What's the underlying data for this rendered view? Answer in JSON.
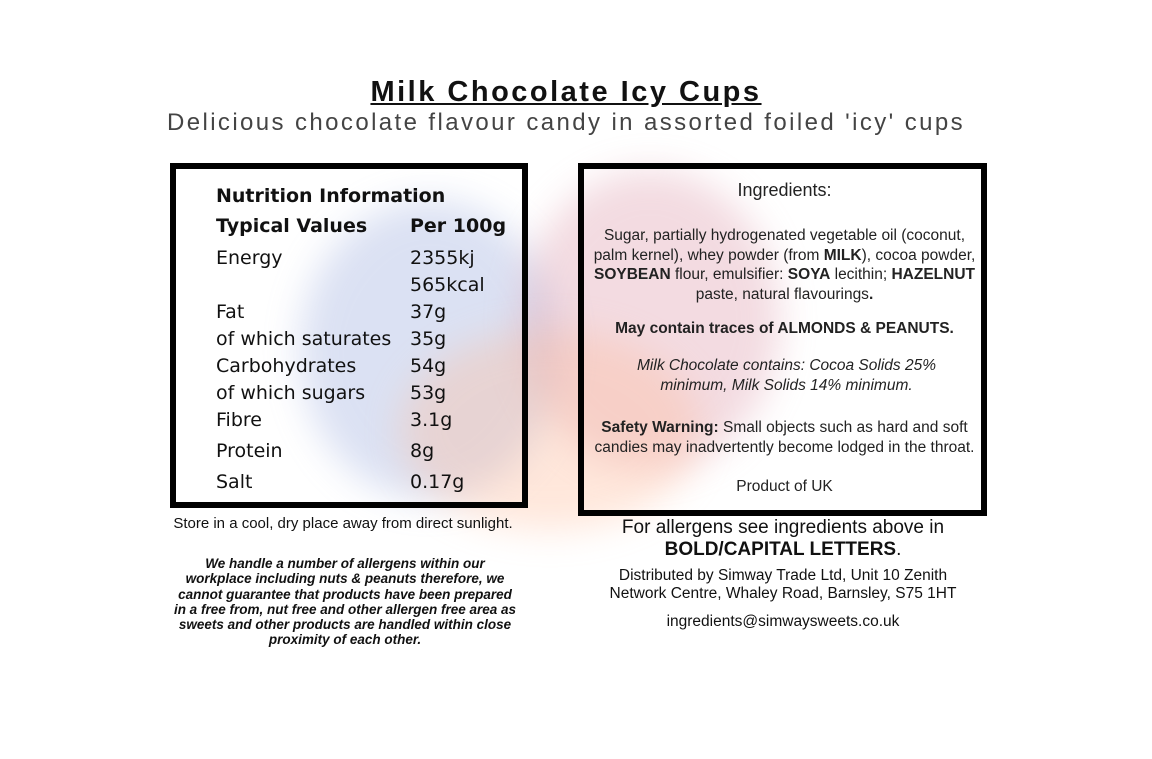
{
  "title": "Milk Chocolate Icy Cups",
  "subtitle": "Delicious chocolate flavour candy in assorted foiled 'icy' cups",
  "nutrition": {
    "heading": "Nutrition Information",
    "columns": [
      "Typical Values",
      "Per 100g"
    ],
    "rows": [
      {
        "label": "Energy",
        "values": [
          "2355kj",
          "565kcal"
        ]
      },
      {
        "label": "Fat",
        "values": [
          "37g"
        ]
      },
      {
        "label": "of which saturates",
        "values": [
          "35g"
        ]
      },
      {
        "label": "Carbohydrates",
        "values": [
          "54g"
        ]
      },
      {
        "label": "of which sugars",
        "values": [
          "53g"
        ]
      },
      {
        "label": "Fibre",
        "values": [
          "3.1g"
        ]
      },
      {
        "label": "Protein",
        "values": [
          "8g"
        ]
      },
      {
        "label": "Salt",
        "values": [
          "0.17g"
        ]
      }
    ]
  },
  "storage": "Store in a cool, dry place away from direct sunlight.",
  "allergen_notice": "We handle a number of allergens within our workplace including nuts & peanuts therefore, we cannot guarantee that products have been prepared in a free from, nut free and other allergen free area as sweets and other products are handled within close proximity of each other.",
  "ingredients": {
    "heading": "Ingredients:",
    "text": [
      "Sugar, partially hydrogenated vegetable oil (coconut, palm kernel), whey powder (from ",
      "MILK",
      "), cocoa powder, ",
      "SOYBEAN",
      " flour, emulsifier: ",
      "SOYA",
      " lecithin; ",
      "HAZELNUT",
      " paste, natural flavourings",
      "."
    ],
    "traces": "May contain traces of ALMONDS & PEANUTS.",
    "milk_chocolate": "Milk Chocolate contains: Cocoa Solids 25% minimum, Milk Solids 14% minimum.",
    "safety_label": "Safety Warning:",
    "safety_text": " Small objects such as hard and soft candies may inadvertently become lodged in the throat.",
    "origin": "Product of UK"
  },
  "allergen_note": [
    "For allergens see ingredients above in",
    "BOLD/CAPITAL LETTERS",
    "."
  ],
  "distributor": "Distributed by Simway Trade Ltd, Unit 10 Zenith Network Centre, Whaley Road, Barnsley, S75 1HT",
  "email": "ingredients@simwaysweets.co.uk"
}
